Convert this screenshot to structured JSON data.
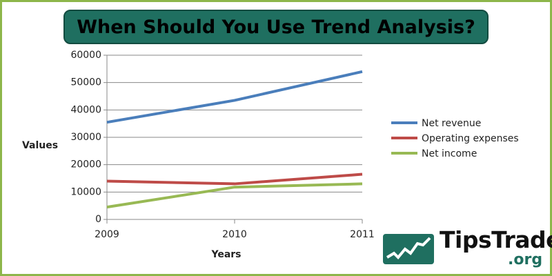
{
  "title": "When Should You Use Trend Analysis?",
  "logo": {
    "name": "TipsTrade",
    "suffix": ".org"
  },
  "colors": {
    "title_bg": "#1f6f60",
    "frame": "#8db64a"
  },
  "chart_data": {
    "type": "line",
    "xlabel": "Years",
    "ylabel": "Values",
    "x": [
      2009,
      2010,
      2011
    ],
    "xticks": [
      "2009",
      "2010",
      "2011"
    ],
    "yticks": [
      "0",
      "10000",
      "20000",
      "30000",
      "40000",
      "50000",
      "60000"
    ],
    "ylim": [
      0,
      60000
    ],
    "grid": "horizontal",
    "legend": "right",
    "series": [
      {
        "name": "Net revenue",
        "color": "#4a7ebb",
        "values": [
          35500,
          43500,
          54000
        ]
      },
      {
        "name": "Operating expenses",
        "color": "#be4b48",
        "values": [
          14000,
          13000,
          16500
        ]
      },
      {
        "name": "Net income",
        "color": "#98b954",
        "values": [
          4500,
          11800,
          13000
        ]
      }
    ]
  }
}
